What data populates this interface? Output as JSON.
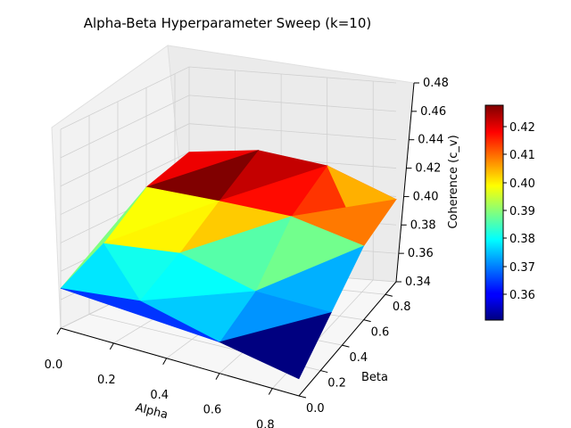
{
  "chart_data": {
    "type": "surface",
    "title": "Alpha-Beta Hyperparameter Sweep (k=10)",
    "xlabel": "Alpha",
    "ylabel": "Beta",
    "zlabel": "Coherence (c_v)",
    "xlim": [
      0.0,
      0.9
    ],
    "ylim": [
      0.0,
      0.9
    ],
    "zlim": [
      0.34,
      0.48
    ],
    "x_ticks": [
      "0.0",
      "0.2",
      "0.4",
      "0.6",
      "0.8"
    ],
    "y_ticks": [
      "0.0",
      "0.2",
      "0.4",
      "0.6",
      "0.8"
    ],
    "z_ticks": [
      "0.34",
      "0.36",
      "0.38",
      "0.40",
      "0.42",
      "0.44",
      "0.46",
      "0.48"
    ],
    "colorbar_ticks": [
      "0.36",
      "0.37",
      "0.38",
      "0.39",
      "0.40",
      "0.41",
      "0.42"
    ],
    "colormap": "jet",
    "color_range": [
      0.352,
      0.426
    ],
    "grid": true,
    "colorbar_position": "right",
    "vertices": [
      {
        "alpha": 0.9,
        "beta": 0.0,
        "coherence": 0.352
      },
      {
        "alpha": 0.6,
        "beta": 0.0,
        "coherence": 0.362
      },
      {
        "alpha": 0.9,
        "beta": 0.3,
        "coherence": 0.372
      },
      {
        "alpha": 0.3,
        "beta": 0.0,
        "coherence": 0.375
      },
      {
        "alpha": 0.0,
        "beta": 0.0,
        "coherence": 0.368
      },
      {
        "alpha": 0.6,
        "beta": 0.3,
        "coherence": 0.375
      },
      {
        "alpha": 0.3,
        "beta": 0.3,
        "coherence": 0.39
      },
      {
        "alpha": 0.0,
        "beta": 0.3,
        "coherence": 0.385
      },
      {
        "alpha": 0.9,
        "beta": 0.6,
        "coherence": 0.392
      },
      {
        "alpha": 0.9,
        "beta": 0.9,
        "coherence": 0.398
      },
      {
        "alpha": 0.6,
        "beta": 0.6,
        "coherence": 0.405
      },
      {
        "alpha": 0.6,
        "beta": 0.9,
        "coherence": 0.418
      },
      {
        "alpha": 0.3,
        "beta": 0.6,
        "coherence": 0.408
      },
      {
        "alpha": 0.3,
        "beta": 0.9,
        "coherence": 0.425
      },
      {
        "alpha": 0.0,
        "beta": 0.6,
        "coherence": 0.41
      },
      {
        "alpha": 0.0,
        "beta": 0.9,
        "coherence": 0.42
      }
    ],
    "triangles": [
      [
        0,
        1,
        2,
        0.352
      ],
      [
        1,
        2,
        5,
        0.372
      ],
      [
        2,
        5,
        8,
        0.374
      ],
      [
        1,
        3,
        5,
        0.376
      ],
      [
        3,
        5,
        6,
        0.38
      ],
      [
        3,
        4,
        7,
        0.378
      ],
      [
        3,
        6,
        7,
        0.381
      ],
      [
        4,
        3,
        1,
        0.365
      ],
      [
        5,
        6,
        10,
        0.386
      ],
      [
        5,
        8,
        10,
        0.388
      ],
      [
        6,
        7,
        12,
        0.399
      ],
      [
        6,
        10,
        12,
        0.402
      ],
      [
        7,
        12,
        14,
        0.398
      ],
      [
        7,
        14,
        4,
        0.389
      ],
      [
        8,
        9,
        10,
        0.408
      ],
      [
        9,
        10,
        11,
        0.413
      ],
      [
        10,
        11,
        12,
        0.416
      ],
      [
        11,
        12,
        13,
        0.421
      ],
      [
        12,
        13,
        14,
        0.426
      ],
      [
        13,
        14,
        15,
        0.418
      ],
      [
        9,
        11,
        8,
        0.404
      ]
    ]
  }
}
